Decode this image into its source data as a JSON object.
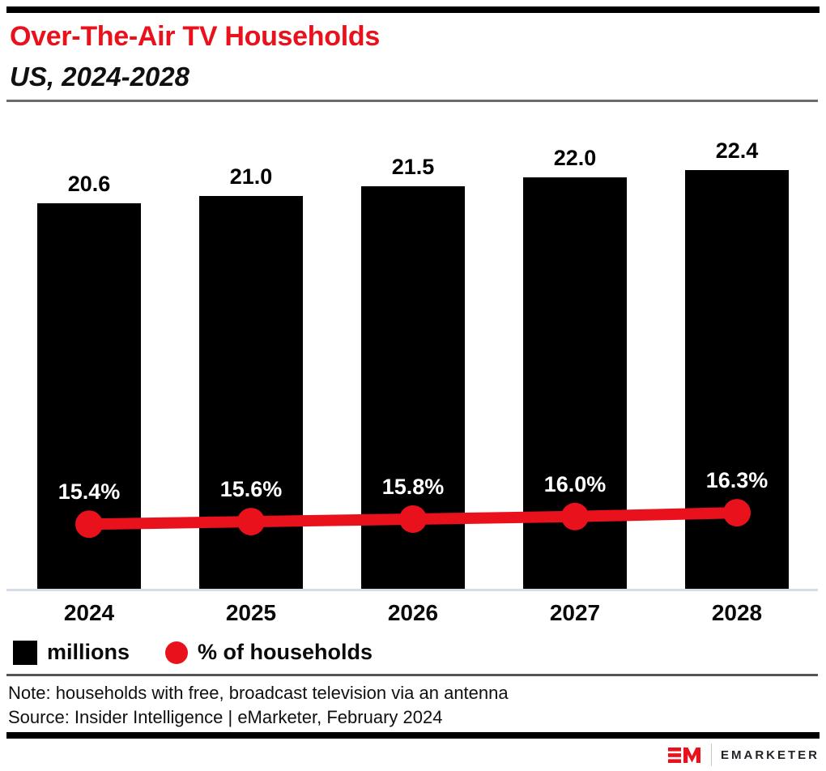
{
  "chart_data": {
    "type": "combo",
    "title": "Over-The-Air TV Households",
    "subtitle": "US, 2024-2028",
    "categories": [
      "2024",
      "2025",
      "2026",
      "2027",
      "2028"
    ],
    "series": [
      {
        "name": "millions",
        "type": "bar",
        "color": "#000000",
        "values": [
          20.6,
          21.0,
          21.5,
          22.0,
          22.4
        ],
        "labels": [
          "20.6",
          "21.0",
          "21.5",
          "22.0",
          "22.4"
        ]
      },
      {
        "name": "% of households",
        "type": "line",
        "color": "#E8111C",
        "values": [
          15.4,
          15.6,
          15.8,
          16.0,
          16.3
        ],
        "labels": [
          "15.4%",
          "15.6%",
          "15.8%",
          "16.0%",
          "16.3%"
        ]
      }
    ],
    "legend": [
      {
        "label": "millions",
        "swatch": "square",
        "color": "#000000"
      },
      {
        "label": "% of households",
        "swatch": "circle",
        "color": "#E8111C"
      }
    ],
    "legend_position": "bottom-left",
    "x_axis": {
      "visible": true
    },
    "y_axis": {
      "visible": false,
      "bar_min": 0
    },
    "gridlines": false
  },
  "footnote": {
    "note": "Note: households with free, broadcast television via an antenna",
    "source": "Source: Insider Intelligence | eMarketer, February 2024"
  },
  "footer": {
    "brand": "EMARKETER"
  },
  "colors": {
    "accent_red": "#E8111C",
    "bar_black": "#000000",
    "baseline": "#D6DCE8",
    "divider": "#6B6B6B"
  }
}
